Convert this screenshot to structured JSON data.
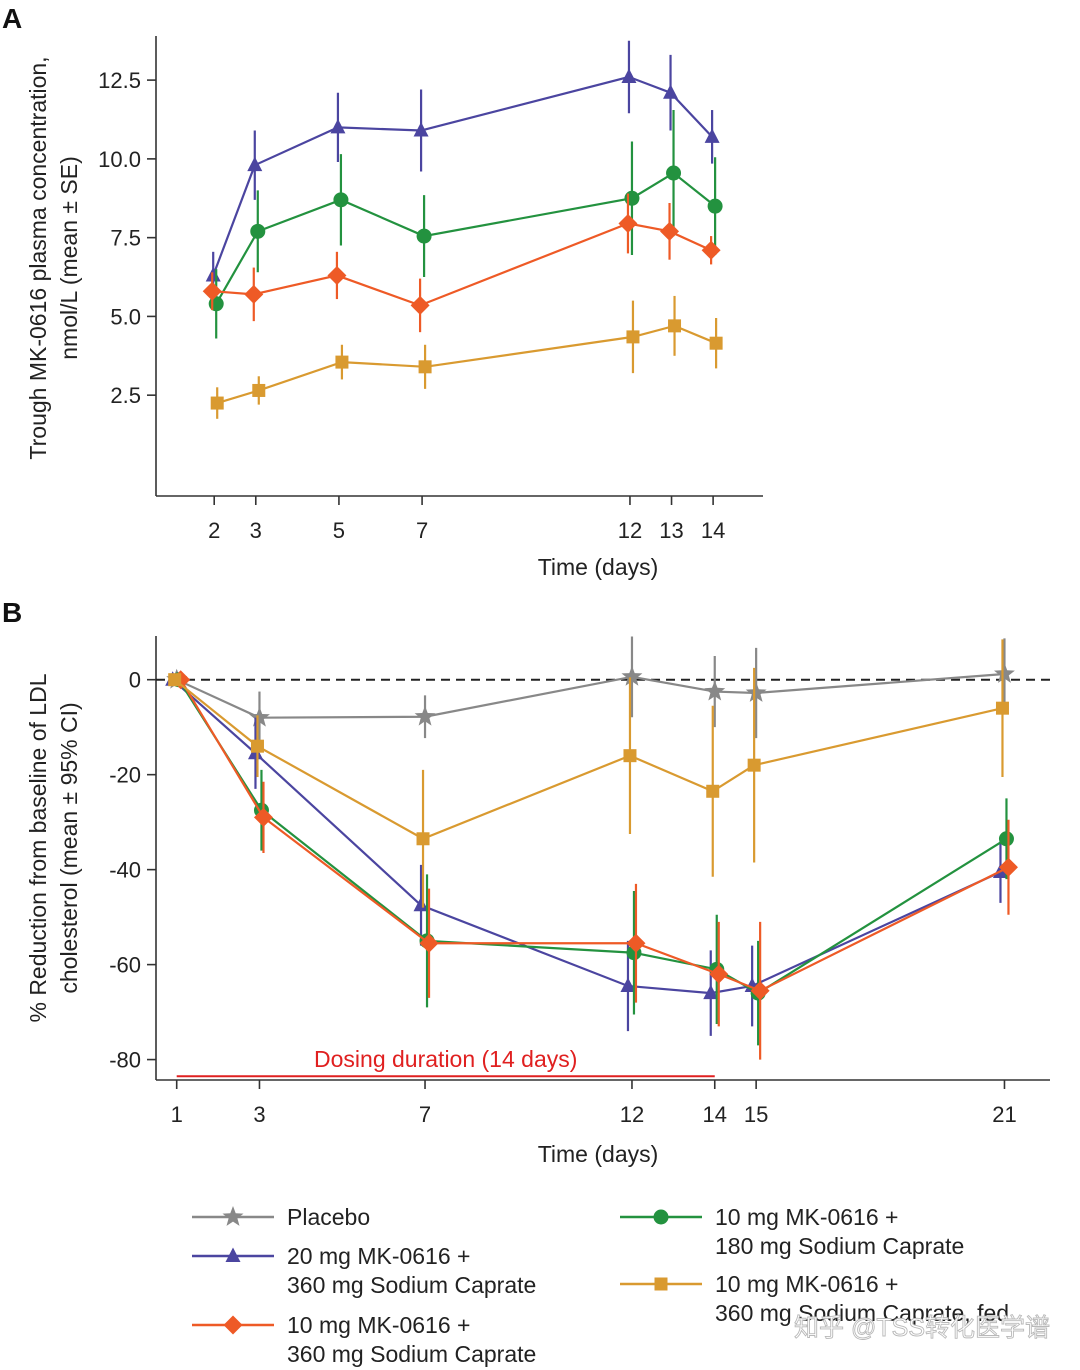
{
  "watermark": "知乎 @TSS转化医学谱",
  "series_styles": [
    {
      "key": "placebo",
      "color": "#888888",
      "marker": "star"
    },
    {
      "key": "mk20_360",
      "color": "#4b45a0",
      "marker": "triangle"
    },
    {
      "key": "mk10_360",
      "color": "#ee5a26",
      "marker": "diamond"
    },
    {
      "key": "mk10_180",
      "color": "#23923f",
      "marker": "circle"
    },
    {
      "key": "mk10_360_fed",
      "color": "#d99a30",
      "marker": "square"
    }
  ],
  "legend": {
    "items": [
      {
        "key": "placebo",
        "lines": [
          "Placebo"
        ]
      },
      {
        "key": "mk20_360",
        "lines": [
          "20 mg MK-0616 +",
          "360 mg Sodium Caprate"
        ]
      },
      {
        "key": "mk10_360",
        "lines": [
          "10 mg MK-0616 +",
          "360 mg Sodium Caprate"
        ]
      },
      {
        "key": "mk10_180",
        "lines": [
          "10 mg MK-0616 +",
          "180 mg Sodium Caprate"
        ]
      },
      {
        "key": "mk10_360_fed",
        "lines": [
          "10 mg MK-0616 +",
          "360 mg Sodium Caprate, fed"
        ]
      }
    ]
  },
  "chart_data": [
    {
      "panel": "A",
      "type": "line",
      "xlabel": "Time (days)",
      "ylabel_lines": [
        "Trough MK-0616 plasma concentration,",
        "nmol/L (mean ± SE)"
      ],
      "xlim": [
        0.6,
        15.2
      ],
      "ylim": [
        -0.7,
        13.9
      ],
      "x_ticks": [
        2,
        3,
        5,
        7,
        12,
        13,
        14
      ],
      "y_ticks": [
        2.5,
        5.0,
        7.5,
        10.0,
        12.5
      ],
      "y_tick_labels": [
        "2.5",
        "5.0",
        "7.5",
        "10.0",
        "12.5"
      ],
      "series": [
        {
          "key": "mk20_360",
          "x": [
            2,
            3,
            5,
            7,
            12,
            13,
            14
          ],
          "y": [
            6.3,
            9.8,
            11.0,
            10.9,
            12.6,
            12.1,
            10.7
          ],
          "err": [
            0.75,
            1.1,
            1.1,
            1.3,
            1.15,
            1.2,
            0.85
          ]
        },
        {
          "key": "mk10_180",
          "x": [
            2,
            3,
            5,
            7,
            12,
            13,
            14
          ],
          "y": [
            5.4,
            7.7,
            8.7,
            7.55,
            8.75,
            9.55,
            8.5
          ],
          "err": [
            1.1,
            1.3,
            1.45,
            1.3,
            1.8,
            2.0,
            1.55
          ]
        },
        {
          "key": "mk10_360",
          "x": [
            2,
            3,
            5,
            7,
            12,
            13,
            14
          ],
          "y": [
            5.8,
            5.7,
            6.3,
            5.35,
            7.95,
            7.7,
            7.1
          ],
          "err": [
            0.6,
            0.85,
            0.75,
            0.85,
            0.95,
            0.9,
            0.45
          ]
        },
        {
          "key": "mk10_360_fed",
          "x": [
            2,
            3,
            5,
            7,
            12,
            13,
            14
          ],
          "y": [
            2.25,
            2.65,
            3.55,
            3.4,
            4.35,
            4.7,
            4.15
          ],
          "err": [
            0.5,
            0.45,
            0.55,
            0.7,
            1.15,
            0.95,
            0.8
          ]
        }
      ]
    },
    {
      "panel": "B",
      "type": "line",
      "xlabel": "Time (days)",
      "ylabel_lines": [
        "% Reduction from baseline of LDL",
        "cholesterol (mean ± 95% CI)"
      ],
      "xlim": [
        0.5,
        22.1
      ],
      "ylim": [
        -84.3,
        9.2
      ],
      "x_ticks": [
        1,
        3,
        7,
        12,
        14,
        15,
        21
      ],
      "y_ticks": [
        0,
        -20,
        -40,
        -60,
        -80
      ],
      "y_tick_labels": [
        "0",
        "-20",
        "-40",
        "-60",
        "-80"
      ],
      "reference_line_y": 0,
      "dosing_annotation": {
        "text": "Dosing duration (14 days)",
        "x_start": 1,
        "x_end": 14,
        "y": -83.5,
        "color": "#e02020"
      },
      "series": [
        {
          "key": "placebo",
          "x": [
            1,
            3,
            7,
            12,
            14,
            15,
            21
          ],
          "y": [
            0,
            -8,
            -7.8,
            0.6,
            -2.5,
            -2.8,
            1.2
          ],
          "err": [
            0.5,
            5.5,
            4.5,
            8.5,
            7.5,
            9.5,
            7.5
          ]
        },
        {
          "key": "mk20_360",
          "x": [
            1,
            3,
            7,
            12,
            14,
            15,
            21
          ],
          "y": [
            0,
            -15.5,
            -47.5,
            -64.5,
            -66,
            -64.5,
            -40.5
          ],
          "err": [
            0.5,
            7.5,
            8.5,
            9.5,
            9,
            8.5,
            6.5
          ]
        },
        {
          "key": "mk10_180",
          "x": [
            1,
            3,
            7,
            12,
            14,
            15,
            21
          ],
          "y": [
            0,
            -27.5,
            -55,
            -57.5,
            -61,
            -66,
            -33.5
          ],
          "err": [
            0.5,
            8.5,
            14,
            13,
            11.5,
            11,
            8.5
          ]
        },
        {
          "key": "mk10_360",
          "x": [
            1,
            3,
            7,
            12,
            14,
            15,
            21
          ],
          "y": [
            0,
            -29,
            -55.5,
            -55.5,
            -62,
            -65.5,
            -39.5
          ],
          "err": [
            0.5,
            7.5,
            11.5,
            12.5,
            11,
            14.5,
            10
          ]
        },
        {
          "key": "mk10_360_fed",
          "x": [
            1,
            3,
            7,
            12,
            14,
            15,
            21
          ],
          "y": [
            0,
            -14,
            -33.5,
            -16,
            -23.5,
            -18,
            -6
          ],
          "err": [
            0.5,
            6.5,
            14.5,
            16.5,
            18,
            20.5,
            14.5
          ]
        }
      ]
    }
  ]
}
